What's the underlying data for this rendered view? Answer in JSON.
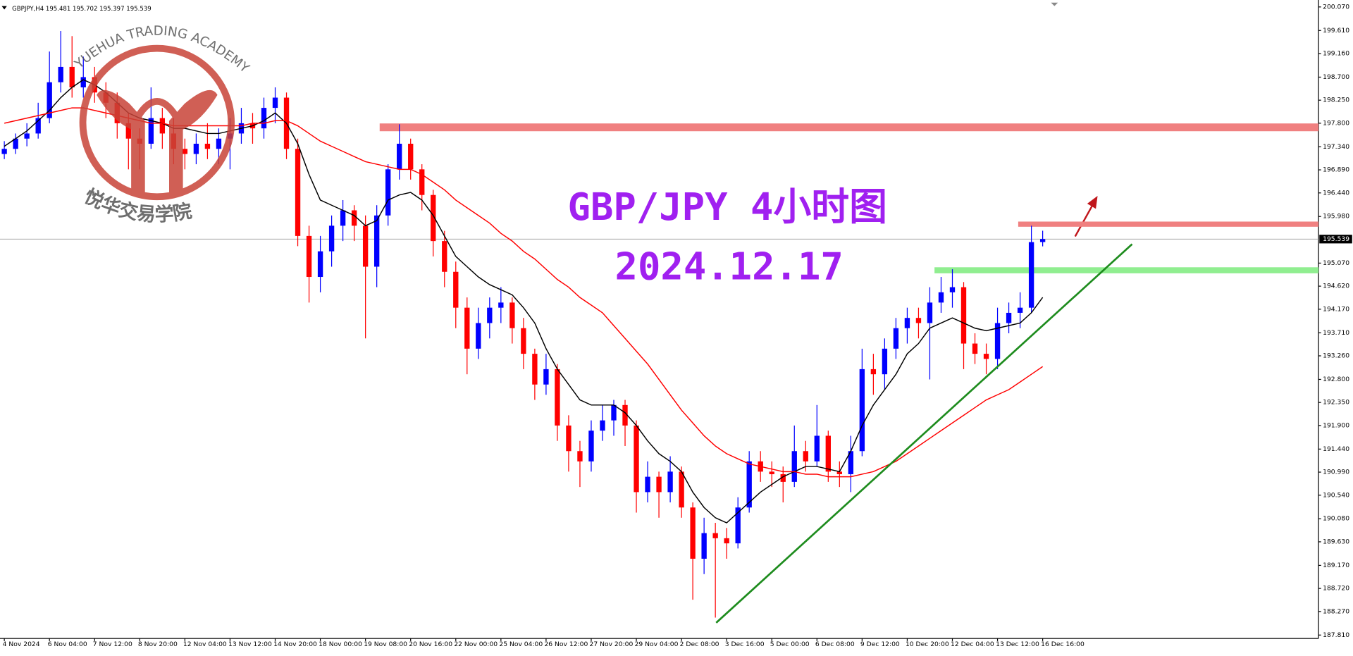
{
  "header": "GBPJPY,H4  195.481 195.702 195.397 195.539",
  "watermark": {
    "brand": "YUEHUA TRADING ACADEMY",
    "name": "悦华交易学院"
  },
  "chart_data": {
    "type": "candlestick",
    "title": "GBP/JPY 4小时图",
    "subtitle": "2024.12.17",
    "categories": [
      "4 Nov 2024",
      null,
      null,
      null,
      "6 Nov 04:00",
      null,
      null,
      null,
      "7 Nov 12:00",
      null,
      null,
      null,
      "8 Nov 20:00",
      null,
      null,
      null,
      "12 Nov 04:00",
      null,
      null,
      null,
      "13 Nov 12:00",
      null,
      null,
      null,
      "14 Nov 20:00",
      null,
      null,
      null,
      "18 Nov 00:00",
      null,
      null,
      null,
      "19 Nov 08:00",
      null,
      null,
      null,
      "20 Nov 16:00",
      null,
      null,
      null,
      "22 Nov 00:00",
      null,
      null,
      null,
      "25 Nov 04:00",
      null,
      null,
      null,
      "26 Nov 12:00",
      null,
      null,
      null,
      "27 Nov 20:00",
      null,
      null,
      null,
      "29 Nov 04:00",
      null,
      null,
      null,
      "2 Dec 08:00",
      null,
      null,
      null,
      "3 Dec 16:00",
      null,
      null,
      null,
      "5 Dec 00:00",
      null,
      null,
      null,
      "6 Dec 08:00",
      null,
      null,
      null,
      "9 Dec 12:00",
      null,
      null,
      null,
      "10 Dec 20:00",
      null,
      null,
      null,
      "12 Dec 04:00",
      null,
      null,
      null,
      "13 Dec 12:00",
      null,
      null,
      null,
      "16 Dec 16:00"
    ],
    "candles": [
      [
        197.2,
        197.45,
        197.1,
        197.3
      ],
      [
        197.3,
        197.6,
        197.2,
        197.5
      ],
      [
        197.5,
        197.8,
        197.35,
        197.6
      ],
      [
        197.6,
        198.2,
        197.5,
        197.9
      ],
      [
        197.9,
        199.2,
        197.8,
        198.6
      ],
      [
        198.6,
        199.6,
        198.4,
        198.9
      ],
      [
        198.9,
        199.5,
        198.3,
        198.5
      ],
      [
        198.5,
        199.1,
        198.3,
        198.7
      ],
      [
        198.7,
        198.9,
        198.2,
        198.4
      ],
      [
        198.4,
        198.6,
        197.9,
        198.2
      ],
      [
        198.2,
        198.4,
        197.5,
        197.8
      ],
      [
        197.8,
        198.0,
        196.9,
        197.5
      ],
      [
        197.5,
        197.7,
        196.9,
        197.4
      ],
      [
        197.4,
        198.5,
        197.3,
        197.9
      ],
      [
        197.9,
        198.1,
        197.3,
        197.6
      ],
      [
        197.6,
        197.9,
        197.0,
        197.3
      ],
      [
        197.3,
        197.5,
        196.9,
        197.2
      ],
      [
        197.2,
        197.6,
        197.0,
        197.4
      ],
      [
        197.4,
        197.8,
        197.1,
        197.3
      ],
      [
        197.3,
        197.7,
        197.0,
        197.5
      ],
      [
        197.5,
        197.9,
        196.9,
        197.6
      ],
      [
        197.6,
        198.1,
        197.4,
        197.8
      ],
      [
        197.8,
        198.0,
        197.4,
        197.7
      ],
      [
        197.7,
        198.3,
        197.5,
        198.1
      ],
      [
        198.1,
        198.5,
        197.8,
        198.3
      ],
      [
        198.3,
        198.4,
        197.1,
        197.3
      ],
      [
        197.3,
        197.5,
        195.4,
        195.6
      ],
      [
        195.6,
        195.8,
        194.3,
        194.8
      ],
      [
        194.8,
        195.6,
        194.5,
        195.3
      ],
      [
        195.3,
        196.0,
        195.0,
        195.8
      ],
      [
        195.8,
        196.3,
        195.5,
        196.1
      ],
      [
        196.1,
        196.2,
        195.5,
        195.8
      ],
      [
        195.8,
        196.0,
        193.6,
        195.0
      ],
      [
        195.0,
        196.2,
        194.6,
        196.0
      ],
      [
        196.0,
        197.0,
        195.8,
        196.9
      ],
      [
        196.9,
        197.78,
        196.7,
        197.4
      ],
      [
        197.4,
        197.5,
        196.7,
        196.9
      ],
      [
        196.9,
        197.0,
        196.1,
        196.4
      ],
      [
        196.4,
        196.5,
        195.2,
        195.5
      ],
      [
        195.5,
        195.7,
        194.6,
        194.9
      ],
      [
        194.9,
        195.1,
        193.8,
        194.2
      ],
      [
        194.2,
        194.4,
        192.9,
        193.4
      ],
      [
        193.4,
        194.2,
        193.2,
        193.9
      ],
      [
        193.9,
        194.4,
        193.6,
        194.2
      ],
      [
        194.2,
        194.6,
        193.9,
        194.3
      ],
      [
        194.3,
        194.4,
        193.5,
        193.8
      ],
      [
        193.8,
        194.0,
        193.0,
        193.3
      ],
      [
        193.3,
        193.4,
        192.4,
        192.7
      ],
      [
        192.7,
        193.3,
        192.5,
        193.0
      ],
      [
        193.0,
        193.1,
        191.6,
        191.9
      ],
      [
        191.9,
        192.1,
        191.0,
        191.4
      ],
      [
        191.4,
        191.6,
        190.7,
        191.2
      ],
      [
        191.2,
        192.0,
        191.0,
        191.8
      ],
      [
        191.8,
        192.3,
        191.6,
        192.0
      ],
      [
        192.0,
        192.4,
        191.7,
        192.3
      ],
      [
        192.3,
        192.4,
        191.5,
        191.9
      ],
      [
        191.9,
        192.0,
        190.2,
        190.6
      ],
      [
        190.6,
        191.2,
        190.4,
        190.9
      ],
      [
        190.9,
        191.0,
        190.1,
        190.6
      ],
      [
        190.6,
        191.3,
        190.4,
        191.0
      ],
      [
        191.0,
        191.1,
        190.1,
        190.3
      ],
      [
        190.3,
        190.4,
        188.5,
        189.3
      ],
      [
        189.3,
        190.1,
        189.0,
        189.8
      ],
      [
        189.8,
        190.0,
        188.15,
        189.7
      ],
      [
        189.7,
        189.9,
        189.3,
        189.6
      ],
      [
        189.6,
        190.5,
        189.5,
        190.3
      ],
      [
        190.3,
        191.4,
        190.2,
        191.2
      ],
      [
        191.2,
        191.4,
        190.8,
        191.0
      ],
      [
        191.0,
        191.2,
        190.7,
        190.95
      ],
      [
        190.95,
        191.1,
        190.4,
        190.8
      ],
      [
        190.8,
        191.9,
        190.7,
        191.4
      ],
      [
        191.4,
        191.6,
        191.0,
        191.2
      ],
      [
        191.2,
        192.3,
        191.1,
        191.7
      ],
      [
        191.7,
        191.8,
        190.8,
        191.0
      ],
      [
        191.0,
        191.2,
        190.7,
        190.95
      ],
      [
        190.95,
        191.7,
        190.6,
        191.4
      ],
      [
        191.4,
        193.4,
        191.3,
        193.0
      ],
      [
        193.0,
        193.3,
        192.5,
        192.9
      ],
      [
        192.9,
        193.6,
        192.6,
        193.4
      ],
      [
        193.4,
        194.0,
        193.2,
        193.8
      ],
      [
        193.8,
        194.2,
        193.5,
        194.0
      ],
      [
        194.0,
        194.2,
        193.6,
        193.9
      ],
      [
        193.9,
        194.6,
        192.8,
        194.3
      ],
      [
        194.3,
        194.8,
        194.1,
        194.5
      ],
      [
        194.5,
        194.95,
        194.2,
        194.6
      ],
      [
        194.6,
        194.7,
        193.0,
        193.5
      ],
      [
        193.5,
        193.7,
        193.1,
        193.3
      ],
      [
        193.3,
        193.5,
        192.9,
        193.2
      ],
      [
        193.2,
        194.2,
        193.0,
        193.9
      ],
      [
        193.9,
        194.3,
        193.7,
        194.1
      ],
      [
        194.1,
        194.5,
        193.8,
        194.2
      ],
      [
        194.2,
        195.8,
        194.1,
        195.48
      ],
      [
        195.481,
        195.702,
        195.397,
        195.539
      ]
    ],
    "up_color": "#0000ff",
    "down_color": "#ff0000",
    "series": [
      {
        "color": "#000000",
        "values": [
          197.35,
          197.5,
          197.65,
          197.85,
          198.05,
          198.3,
          198.5,
          198.65,
          198.55,
          198.4,
          198.2,
          198.0,
          197.9,
          197.85,
          197.8,
          197.7,
          197.7,
          197.65,
          197.6,
          197.6,
          197.65,
          197.7,
          197.75,
          197.85,
          198.0,
          197.8,
          197.4,
          196.8,
          196.3,
          196.2,
          196.1,
          196.0,
          195.8,
          195.9,
          196.3,
          196.4,
          196.45,
          196.3,
          196.0,
          195.6,
          195.2,
          195.0,
          194.8,
          194.65,
          194.55,
          194.45,
          194.2,
          193.9,
          193.4,
          193.0,
          192.7,
          192.4,
          192.3,
          192.3,
          192.3,
          192.15,
          191.9,
          191.6,
          191.35,
          191.2,
          191.0,
          190.6,
          190.3,
          190.1,
          190.0,
          190.2,
          190.4,
          190.6,
          190.75,
          190.9,
          191.0,
          191.1,
          191.1,
          191.05,
          191.0,
          191.4,
          191.9,
          192.3,
          192.6,
          192.9,
          193.3,
          193.5,
          193.8,
          193.9,
          194.0,
          193.9,
          193.8,
          193.75,
          193.8,
          193.85,
          193.9,
          194.1,
          194.4
        ]
      },
      {
        "color": "#ff0000",
        "values": [
          197.8,
          197.85,
          197.9,
          197.95,
          198.0,
          198.05,
          198.1,
          198.1,
          198.05,
          198.0,
          197.95,
          197.9,
          197.85,
          197.8,
          197.8,
          197.75,
          197.75,
          197.75,
          197.75,
          197.75,
          197.75,
          197.75,
          197.8,
          197.8,
          197.85,
          197.85,
          197.75,
          197.6,
          197.45,
          197.35,
          197.25,
          197.15,
          197.05,
          197.0,
          196.95,
          196.9,
          196.9,
          196.8,
          196.65,
          196.5,
          196.3,
          196.15,
          196.0,
          195.85,
          195.65,
          195.5,
          195.3,
          195.15,
          194.95,
          194.75,
          194.6,
          194.4,
          194.25,
          194.1,
          193.85,
          193.6,
          193.35,
          193.1,
          192.8,
          192.5,
          192.2,
          191.95,
          191.7,
          191.5,
          191.35,
          191.25,
          191.15,
          191.1,
          191.05,
          191.0,
          191.0,
          190.95,
          190.95,
          190.9,
          190.9,
          190.9,
          190.95,
          191.0,
          191.1,
          191.2,
          191.35,
          191.5,
          191.65,
          191.8,
          191.95,
          192.1,
          192.25,
          192.4,
          192.5,
          192.6,
          192.75,
          192.9,
          193.05
        ]
      }
    ],
    "ylim": [
      187.743,
      200.205
    ],
    "yticks": [
      {
        "value": 200.07,
        "label": "200.070"
      },
      {
        "value": 199.61,
        "label": "199.610"
      },
      {
        "value": 199.16,
        "label": "199.160"
      },
      {
        "value": 198.7,
        "label": "198.700"
      },
      {
        "value": 198.25,
        "label": "198.250"
      },
      {
        "value": 197.8,
        "label": "197.800"
      },
      {
        "value": 197.34,
        "label": "197.340"
      },
      {
        "value": 196.89,
        "label": "196.890"
      },
      {
        "value": 196.44,
        "label": "196.440"
      },
      {
        "value": 195.98,
        "label": "195.980"
      },
      {
        "value": 195.07,
        "label": "195.070"
      },
      {
        "value": 194.62,
        "label": "194.620"
      },
      {
        "value": 194.17,
        "label": "194.170"
      },
      {
        "value": 193.71,
        "label": "193.710"
      },
      {
        "value": 193.26,
        "label": "193.260"
      },
      {
        "value": 192.8,
        "label": "192.800"
      },
      {
        "value": 192.35,
        "label": "192.350"
      },
      {
        "value": 191.9,
        "label": "191.900"
      },
      {
        "value": 191.44,
        "label": "191.440"
      },
      {
        "value": 190.99,
        "label": "190.990"
      },
      {
        "value": 190.54,
        "label": "190.540"
      },
      {
        "value": 190.08,
        "label": "190.080"
      },
      {
        "value": 189.63,
        "label": "189.630"
      },
      {
        "value": 189.17,
        "label": "189.170"
      },
      {
        "value": 188.72,
        "label": "188.720"
      },
      {
        "value": 188.27,
        "label": "188.270"
      },
      {
        "value": 187.81,
        "label": "187.810"
      }
    ],
    "last_price": 195.539,
    "levels": [
      {
        "value": 197.72,
        "color": "#f08080"
      },
      {
        "value": 195.83,
        "color": "#f08080"
      },
      {
        "value": 194.93,
        "color": "#90ee90"
      }
    ],
    "trendline": {
      "values": [
        188.05,
        195.44
      ],
      "color": "#1e8c1e"
    }
  }
}
